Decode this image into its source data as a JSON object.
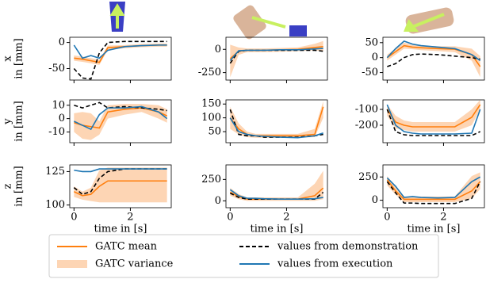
{
  "chart_data": [
    {
      "type": "line",
      "x": [
        0,
        0.3,
        0.6,
        0.9,
        1.2,
        1.8,
        2.4,
        3.0,
        3.3
      ],
      "xlim": [
        -0.15,
        3.45
      ],
      "xticks": [
        0,
        2
      ],
      "ylim": [
        -72,
        10
      ],
      "yticks": [
        0,
        -50
      ],
      "ylabel": [
        "x",
        "in [mm]"
      ],
      "series": [
        {
          "name": "GATC mean",
          "color": "#ff7f0e",
          "values": [
            -30,
            -32,
            -35,
            -38,
            -10,
            -8,
            -6,
            -5,
            -5
          ]
        },
        {
          "name": "GATC variance",
          "color": "#fdd5b4",
          "lower": [
            -35,
            -37,
            -40,
            -43,
            -14,
            -11,
            -9,
            -8,
            -8
          ],
          "upper": [
            -25,
            -27,
            -30,
            -33,
            -6,
            -5,
            -3,
            -2,
            -2
          ]
        },
        {
          "name": "values from demonstration",
          "color": "#000000",
          "dash": true,
          "values": [
            -50,
            -68,
            -70,
            -20,
            0,
            2,
            2,
            2,
            2
          ]
        },
        {
          "name": "values from execution",
          "color": "#1f77b4",
          "values": [
            -5,
            -30,
            -25,
            -30,
            -15,
            -8,
            -6,
            -5,
            -5
          ]
        }
      ]
    },
    {
      "type": "line",
      "x": [
        0,
        0.3,
        0.6,
        0.9,
        1.2,
        1.8,
        2.4,
        3.0,
        3.3
      ],
      "xlim": [
        -0.15,
        3.45
      ],
      "xticks": [
        0,
        2
      ],
      "ylim": [
        -330,
        130
      ],
      "yticks": [
        0,
        -250
      ],
      "series": [
        {
          "color": "#ff7f0e",
          "values": [
            -100,
            -20,
            -10,
            -10,
            -10,
            -5,
            0,
            20,
            30
          ]
        },
        {
          "color": "#fdd5b4",
          "lower": [
            -300,
            -60,
            -30,
            -30,
            -30,
            -25,
            -20,
            -10,
            -20
          ],
          "upper": [
            50,
            20,
            10,
            10,
            10,
            15,
            20,
            60,
            90
          ]
        },
        {
          "color": "#000000",
          "dash": true,
          "values": [
            -150,
            -20,
            -10,
            -10,
            -10,
            -10,
            -10,
            -10,
            -20
          ]
        },
        {
          "color": "#1f77b4",
          "values": [
            -120,
            -15,
            -10,
            -10,
            -10,
            -5,
            -5,
            5,
            10
          ]
        }
      ]
    },
    {
      "type": "line",
      "x": [
        0,
        0.3,
        0.6,
        0.9,
        1.2,
        1.8,
        2.4,
        3.0,
        3.3
      ],
      "xlim": [
        -0.15,
        3.45
      ],
      "xticks": [
        0,
        2
      ],
      "ylim": [
        -75,
        68
      ],
      "yticks": [
        50,
        0,
        -50
      ],
      "series": [
        {
          "color": "#ff7f0e",
          "values": [
            0,
            20,
            40,
            35,
            33,
            30,
            28,
            10,
            -30
          ]
        },
        {
          "color": "#fdd5b4",
          "lower": [
            -10,
            10,
            30,
            28,
            25,
            22,
            18,
            -10,
            -65
          ],
          "upper": [
            10,
            30,
            50,
            42,
            40,
            38,
            38,
            30,
            5
          ]
        },
        {
          "color": "#000000",
          "dash": true,
          "values": [
            -30,
            -20,
            0,
            10,
            12,
            10,
            5,
            0,
            -5
          ]
        },
        {
          "color": "#1f77b4",
          "values": [
            0,
            30,
            55,
            45,
            40,
            35,
            30,
            10,
            -10
          ]
        }
      ]
    },
    {
      "type": "line",
      "x": [
        0,
        0.3,
        0.6,
        0.9,
        1.2,
        1.8,
        2.4,
        3.0,
        3.3
      ],
      "xlim": [
        -0.15,
        3.45
      ],
      "xticks": [
        0,
        2
      ],
      "ylim": [
        -18,
        14
      ],
      "yticks": [
        10,
        0,
        -10
      ],
      "ylabel": [
        "y",
        "in [mm]"
      ],
      "series": [
        {
          "color": "#ff7f0e",
          "values": [
            -3,
            -5,
            -6,
            -7,
            5,
            7,
            8,
            5,
            2
          ]
        },
        {
          "color": "#fdd5b4",
          "lower": [
            -10,
            -15,
            -16,
            -12,
            0,
            3,
            5,
            0,
            -3
          ],
          "upper": [
            4,
            5,
            4,
            -2,
            10,
            11,
            11,
            10,
            7
          ]
        },
        {
          "color": "#000000",
          "dash": true,
          "values": [
            10,
            8,
            10,
            12,
            8,
            9,
            8,
            7,
            6
          ]
        },
        {
          "color": "#1f77b4",
          "values": [
            -2,
            -5,
            -8,
            3,
            8,
            8,
            9,
            5,
            0
          ]
        }
      ]
    },
    {
      "type": "line",
      "x": [
        0,
        0.3,
        0.6,
        0.9,
        1.2,
        1.8,
        2.4,
        3.0,
        3.3
      ],
      "xlim": [
        -0.15,
        3.45
      ],
      "xticks": [
        0,
        2
      ],
      "ylim": [
        10,
        165
      ],
      "yticks": [
        150,
        100,
        50
      ],
      "series": [
        {
          "color": "#ff7f0e",
          "values": [
            100,
            60,
            40,
            35,
            35,
            35,
            35,
            40,
            140
          ]
        },
        {
          "color": "#fdd5b4",
          "lower": [
            60,
            40,
            30,
            28,
            28,
            28,
            28,
            30,
            100
          ],
          "upper": [
            140,
            80,
            50,
            42,
            42,
            42,
            42,
            60,
            160
          ]
        },
        {
          "color": "#000000",
          "dash": true,
          "values": [
            130,
            40,
            35,
            35,
            30,
            30,
            30,
            35,
            40
          ]
        },
        {
          "color": "#1f77b4",
          "values": [
            100,
            50,
            40,
            35,
            33,
            30,
            28,
            35,
            45
          ]
        }
      ]
    },
    {
      "type": "line",
      "x": [
        0,
        0.3,
        0.6,
        0.9,
        1.2,
        1.8,
        2.4,
        3.0,
        3.3
      ],
      "xlim": [
        -0.15,
        3.45
      ],
      "xticks": [
        0,
        2
      ],
      "ylim": [
        -310,
        -40
      ],
      "yticks": [
        -100,
        -200
      ],
      "series": [
        {
          "color": "#ff7f0e",
          "values": [
            -100,
            -180,
            -200,
            -210,
            -210,
            -210,
            -210,
            -150,
            -70
          ]
        },
        {
          "color": "#fdd5b4",
          "lower": [
            -140,
            -220,
            -230,
            -240,
            -240,
            -240,
            -240,
            -200,
            -100
          ],
          "upper": [
            -70,
            -140,
            -170,
            -180,
            -180,
            -180,
            -180,
            -100,
            -40
          ]
        },
        {
          "color": "#000000",
          "dash": true,
          "values": [
            -100,
            -240,
            -260,
            -265,
            -265,
            -265,
            -265,
            -265,
            -240
          ]
        },
        {
          "color": "#1f77b4",
          "values": [
            -70,
            -200,
            -240,
            -250,
            -255,
            -255,
            -255,
            -250,
            -100
          ]
        }
      ]
    },
    {
      "type": "line",
      "x": [
        0,
        0.3,
        0.6,
        0.9,
        1.2,
        1.8,
        2.4,
        3.0,
        3.3
      ],
      "xlim": [
        -0.15,
        3.45
      ],
      "xticks": [
        0,
        2
      ],
      "ylim": [
        98,
        130
      ],
      "yticks": [
        125,
        100
      ],
      "ylabel": [
        "z",
        "in [mm]"
      ],
      "xlabel": "time in [s]",
      "series": [
        {
          "color": "#ff7f0e",
          "values": [
            110,
            107,
            108,
            114,
            118,
            118,
            118,
            118,
            118
          ]
        },
        {
          "color": "#fdd5b4",
          "lower": [
            106,
            104,
            103,
            102,
            102,
            102,
            102,
            102,
            102
          ],
          "upper": [
            114,
            110,
            113,
            126,
            128,
            128,
            128,
            128,
            128
          ]
        },
        {
          "color": "#000000",
          "dash": true,
          "values": [
            113,
            108,
            110,
            120,
            125,
            127,
            127,
            127,
            127
          ]
        },
        {
          "color": "#1f77b4",
          "values": [
            126,
            125,
            125,
            127,
            127,
            127,
            127,
            127,
            127
          ]
        }
      ]
    },
    {
      "type": "line",
      "x": [
        0,
        0.3,
        0.6,
        0.9,
        1.2,
        1.8,
        2.4,
        3.0,
        3.3
      ],
      "xlim": [
        -0.15,
        3.45
      ],
      "xticks": [
        0,
        2
      ],
      "ylim": [
        -80,
        420
      ],
      "yticks": [
        250,
        0
      ],
      "xlabel": "time in [s]",
      "series": [
        {
          "color": "#ff7f0e",
          "values": [
            100,
            50,
            20,
            20,
            20,
            20,
            20,
            60,
            150
          ]
        },
        {
          "color": "#fdd5b4",
          "lower": [
            60,
            20,
            0,
            0,
            0,
            0,
            0,
            0,
            20
          ],
          "upper": [
            150,
            80,
            40,
            40,
            40,
            40,
            40,
            200,
            350
          ]
        },
        {
          "color": "#000000",
          "dash": true,
          "values": [
            90,
            40,
            20,
            20,
            20,
            20,
            20,
            20,
            100
          ]
        },
        {
          "color": "#1f77b4",
          "values": [
            130,
            60,
            30,
            30,
            25,
            20,
            20,
            25,
            40
          ]
        }
      ]
    },
    {
      "type": "line",
      "x": [
        0,
        0.3,
        0.6,
        0.9,
        1.2,
        1.8,
        2.4,
        3.0,
        3.3
      ],
      "xlim": [
        -0.15,
        3.45
      ],
      "xticks": [
        0,
        2
      ],
      "ylim": [
        -80,
        380
      ],
      "yticks": [
        250,
        0
      ],
      "xlabel": "time in [s]",
      "series": [
        {
          "color": "#ff7f0e",
          "values": [
            220,
            100,
            10,
            10,
            10,
            10,
            10,
            100,
            200
          ]
        },
        {
          "color": "#fdd5b4",
          "lower": [
            160,
            60,
            -20,
            -20,
            -20,
            -20,
            -20,
            20,
            120
          ],
          "upper": [
            260,
            150,
            40,
            40,
            40,
            40,
            40,
            260,
            300
          ]
        },
        {
          "color": "#000000",
          "dash": true,
          "values": [
            200,
            80,
            -30,
            -30,
            -35,
            -35,
            -35,
            20,
            200
          ]
        },
        {
          "color": "#1f77b4",
          "values": [
            240,
            150,
            30,
            40,
            30,
            25,
            30,
            200,
            250
          ]
        }
      ]
    }
  ]
}
